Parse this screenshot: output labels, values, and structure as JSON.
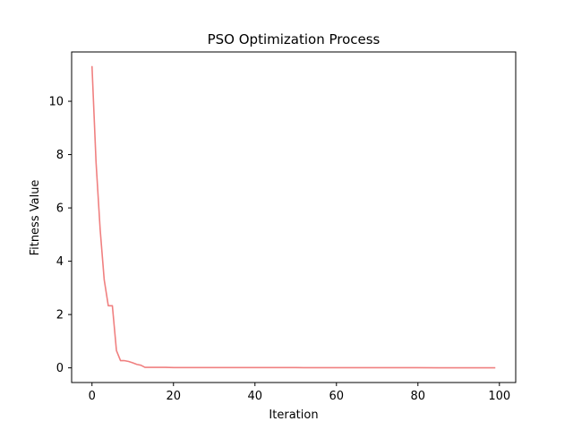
{
  "chart_data": {
    "type": "line",
    "title": "PSO Optimization Process",
    "xlabel": "Iteration",
    "ylabel": "Fitness Value",
    "xlim": [
      -5,
      104
    ],
    "ylim": [
      -0.55,
      11.85
    ],
    "xticks": [
      0,
      20,
      40,
      60,
      80,
      100
    ],
    "yticks": [
      0,
      2,
      4,
      6,
      8,
      10
    ],
    "grid": false,
    "series": [
      {
        "color": "#f08080",
        "x": [
          0,
          1,
          2,
          3,
          4,
          5,
          6,
          7,
          8,
          9,
          10,
          11,
          12,
          13,
          14,
          15,
          16,
          17,
          18,
          19,
          20,
          25,
          30,
          35,
          40,
          45,
          50,
          52,
          55,
          60,
          65,
          70,
          75,
          80,
          85,
          90,
          95,
          99
        ],
        "y": [
          11.32,
          7.7,
          5.2,
          3.3,
          2.33,
          2.33,
          0.65,
          0.27,
          0.27,
          0.24,
          0.19,
          0.13,
          0.1,
          0.02,
          0.02,
          0.02,
          0.02,
          0.02,
          0.02,
          0.015,
          0.01,
          0.01,
          0.01,
          0.01,
          0.01,
          0.01,
          0.01,
          0.005,
          0.005,
          0.005,
          0.005,
          0.005,
          0.005,
          0.005,
          0.003,
          0.003,
          0.002,
          0.002
        ]
      }
    ]
  }
}
